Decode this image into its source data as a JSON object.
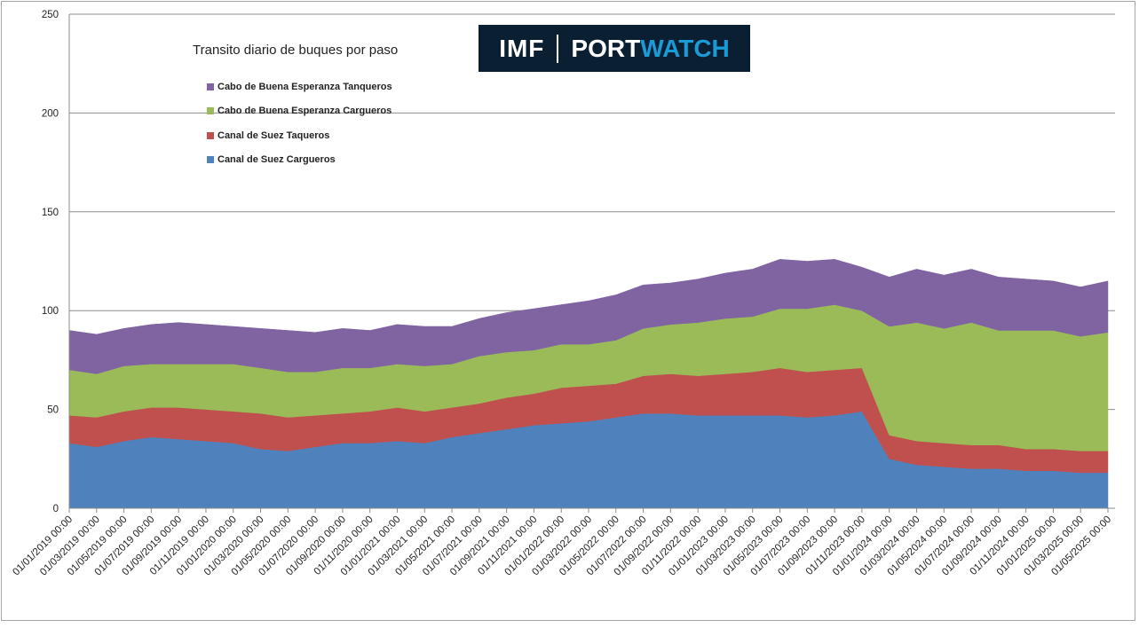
{
  "chart_data": {
    "type": "area",
    "stacked": true,
    "title": "Transito diario de buques por paso",
    "x_labels": [
      "01/01/2019 00:00",
      "01/03/2019 00:00",
      "01/05/2019 00:00",
      "01/07/2019 00:00",
      "01/09/2019 00:00",
      "01/11/2019 00:00",
      "01/01/2020 00:00",
      "01/03/2020 00:00",
      "01/05/2020 00:00",
      "01/07/2020 00:00",
      "01/09/2020 00:00",
      "01/11/2020 00:00",
      "01/01/2021 00:00",
      "01/03/2021 00:00",
      "01/05/2021 00:00",
      "01/07/2021 00:00",
      "01/09/2021 00:00",
      "01/11/2021 00:00",
      "01/01/2022 00:00",
      "01/03/2022 00:00",
      "01/05/2022 00:00",
      "01/07/2022 00:00",
      "01/09/2022 00:00",
      "01/11/2022 00:00",
      "01/01/2023 00:00",
      "01/03/2023 00:00",
      "01/05/2023 00:00",
      "01/07/2023 00:00",
      "01/09/2023 00:00",
      "01/11/2023 00:00",
      "01/01/2024 00:00",
      "01/03/2024 00:00",
      "01/05/2024 00:00",
      "01/07/2024 00:00",
      "01/09/2024 00:00",
      "01/11/2024 00:00",
      "01/01/2025 00:00",
      "01/03/2025 00:00",
      "01/05/2025 00:00"
    ],
    "ylim": [
      0,
      250
    ],
    "yticks": [
      0,
      50,
      100,
      150,
      200,
      250
    ],
    "grid": "horizontal",
    "legend_position": "top-left",
    "series": [
      {
        "name": "Canal de Suez Cargueros",
        "color": "#4f81bd",
        "values": [
          33,
          31,
          34,
          36,
          35,
          34,
          33,
          30,
          29,
          31,
          33,
          33,
          34,
          33,
          36,
          38,
          40,
          42,
          43,
          44,
          46,
          48,
          48,
          47,
          47,
          47,
          47,
          46,
          47,
          49,
          25,
          22,
          21,
          20,
          20,
          19,
          19,
          18,
          18
        ]
      },
      {
        "name": "Canal de Suez Taqueros",
        "color": "#c0504d",
        "values": [
          14,
          15,
          15,
          15,
          16,
          16,
          16,
          18,
          17,
          16,
          15,
          16,
          17,
          16,
          15,
          15,
          16,
          16,
          18,
          18,
          17,
          19,
          20,
          20,
          21,
          22,
          24,
          23,
          23,
          22,
          12,
          12,
          12,
          12,
          12,
          11,
          11,
          11,
          11
        ]
      },
      {
        "name": "Cabo de Buena Esperanza Cargueros",
        "color": "#9bbb59",
        "values": [
          23,
          22,
          23,
          22,
          22,
          23,
          24,
          23,
          23,
          22,
          23,
          22,
          22,
          23,
          22,
          24,
          23,
          22,
          22,
          21,
          22,
          24,
          25,
          27,
          28,
          28,
          30,
          32,
          33,
          29,
          55,
          60,
          58,
          62,
          58,
          60,
          60,
          58,
          60
        ]
      },
      {
        "name": "Cabo de Buena Esperanza Tanqueros",
        "color": "#8064a2",
        "values": [
          20,
          20,
          19,
          20,
          21,
          20,
          19,
          20,
          21,
          20,
          20,
          19,
          20,
          20,
          19,
          19,
          20,
          21,
          20,
          22,
          23,
          22,
          21,
          22,
          23,
          24,
          25,
          24,
          23,
          22,
          25,
          27,
          27,
          27,
          27,
          26,
          25,
          25,
          26
        ]
      }
    ]
  },
  "logo": {
    "imf": "IMF",
    "port": "PORT",
    "watch": "WATCH"
  }
}
